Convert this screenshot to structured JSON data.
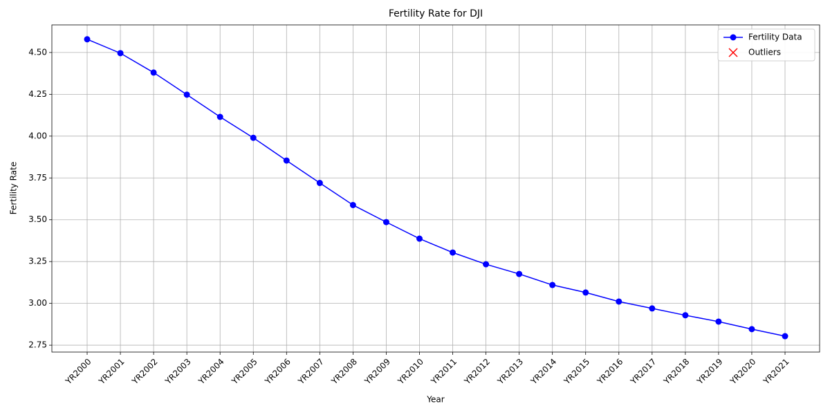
{
  "chart_data": {
    "type": "line",
    "title": "Fertility Rate for DJI",
    "x_label": "Year",
    "y_label": "Fertility Rate",
    "categories": [
      "YR2000",
      "YR2001",
      "YR2002",
      "YR2003",
      "YR2004",
      "YR2005",
      "YR2006",
      "YR2007",
      "YR2008",
      "YR2009",
      "YR2010",
      "YR2011",
      "YR2012",
      "YR2013",
      "YR2014",
      "YR2015",
      "YR2016",
      "YR2017",
      "YR2018",
      "YR2019",
      "YR2020",
      "YR2021"
    ],
    "series": [
      {
        "name": "Fertility Data",
        "color": "#0000ff",
        "marker": "o",
        "values": [
          4.579,
          4.496,
          4.38,
          4.248,
          4.115,
          3.99,
          3.854,
          3.72,
          3.588,
          3.486,
          3.387,
          3.304,
          3.234,
          3.176,
          3.11,
          3.065,
          3.011,
          2.97,
          2.929,
          2.891,
          2.846,
          2.804
        ]
      },
      {
        "name": "Outliers",
        "color": "#ff0000",
        "marker": "x",
        "values": [
          null,
          null,
          null,
          null,
          null,
          null,
          null,
          null,
          null,
          null,
          null,
          null,
          null,
          null,
          null,
          null,
          null,
          null,
          null,
          null,
          null,
          null
        ]
      }
    ],
    "ylim": [
      2.709,
      4.665
    ],
    "yticks": [
      {
        "value": 3.0,
        "label": "3.00"
      },
      3.25,
      {
        "value": 3.5,
        "label": "3.50"
      },
      3.75,
      {
        "value": 4.0,
        "label": "4.00"
      },
      4.25,
      {
        "value": 4.5,
        "label": "4.50"
      },
      2.75
    ],
    "grid": true,
    "legend": "upper right"
  }
}
